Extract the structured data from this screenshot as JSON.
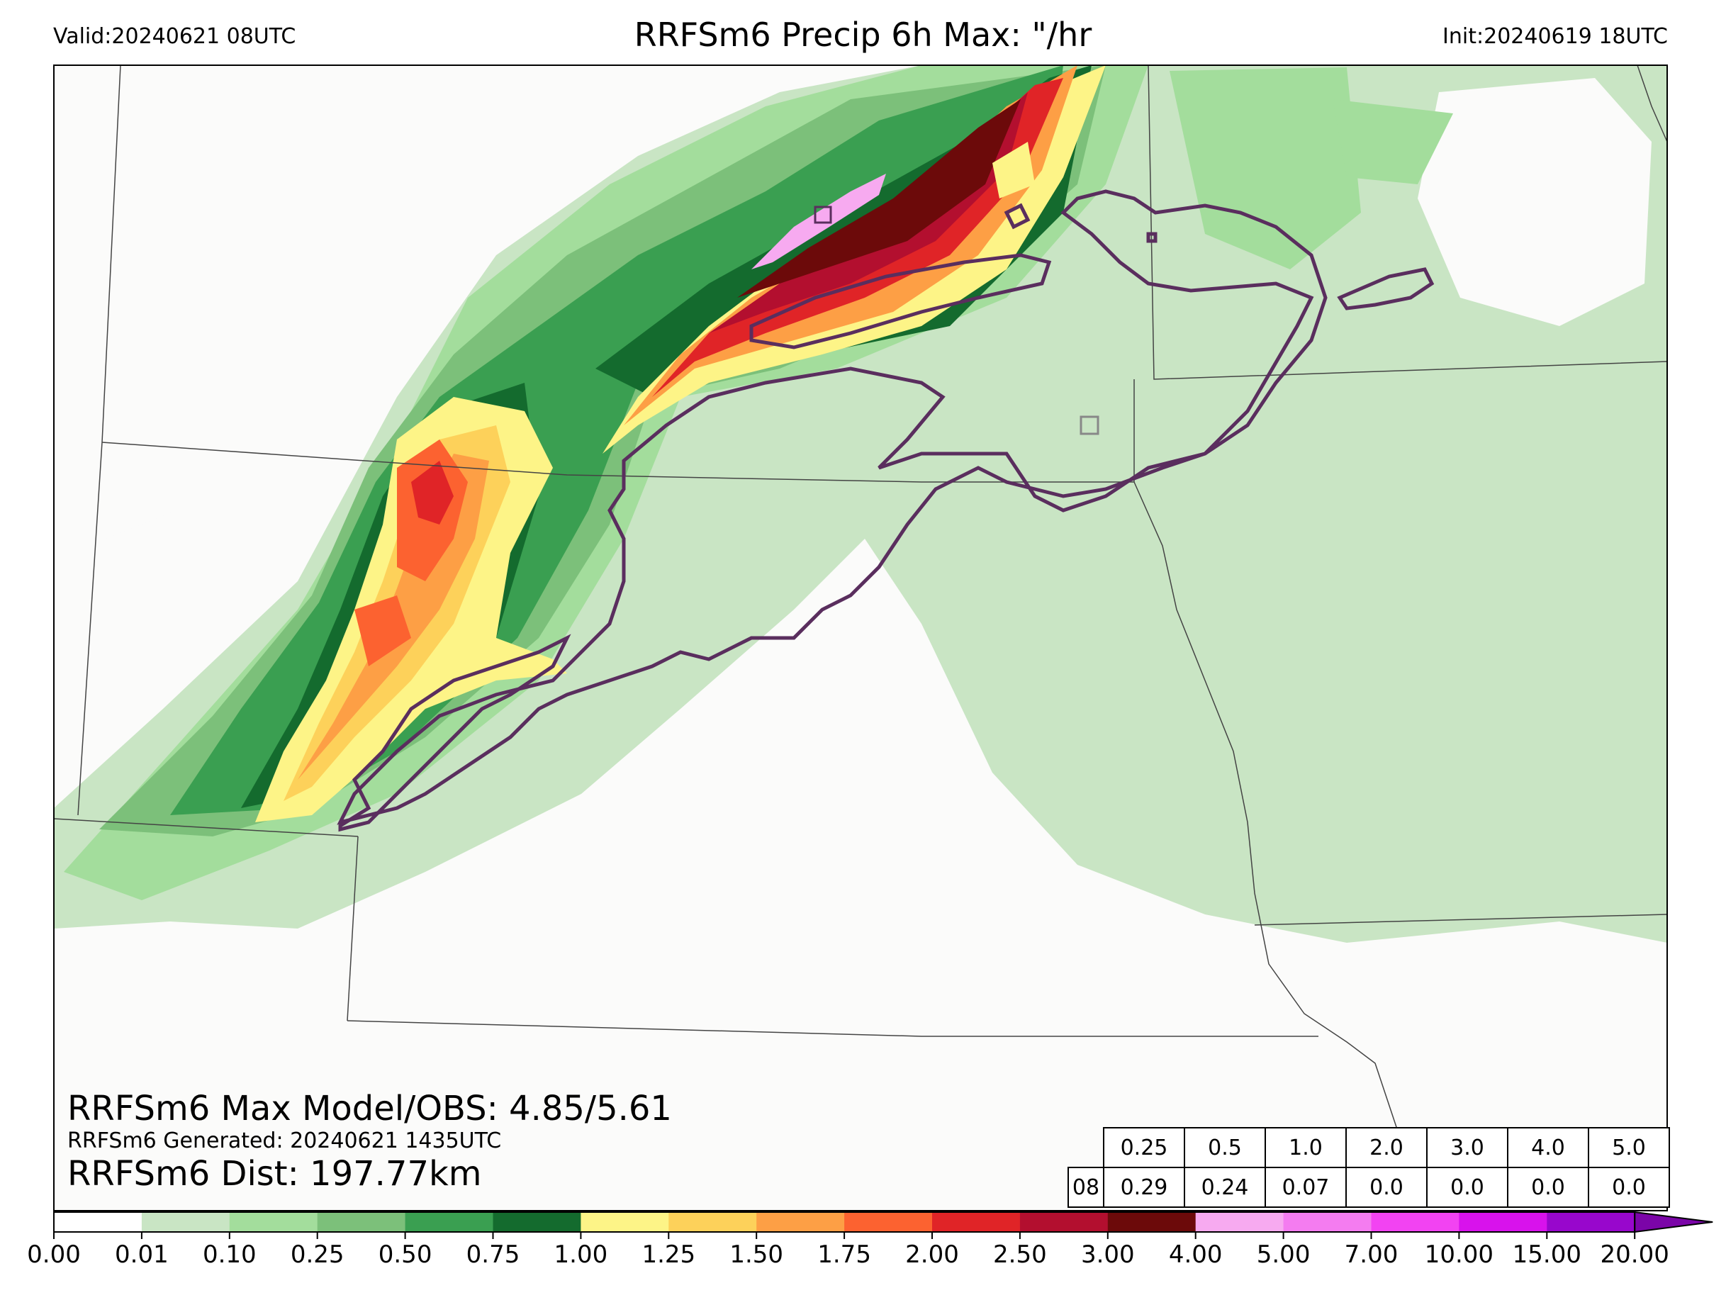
{
  "header": {
    "valid": "Valid:20240621 08UTC",
    "title": "RRFSm6 Precip 6h Max: \"/hr",
    "init": "Init:20240619 18UTC"
  },
  "annotations": {
    "max_line": "RRFSm6 Max Model/OBS: 4.85/5.61",
    "generated_line": "RRFSm6 Generated: 20240621 1435UTC",
    "dist_line": "RRFSm6 Dist: 197.77km"
  },
  "obs_table": {
    "hour_label": "08",
    "thresholds": [
      "0.25",
      "0.5",
      "1.0",
      "2.0",
      "3.0",
      "4.0",
      "5.0"
    ],
    "values": [
      "0.29",
      "0.24",
      "0.07",
      "0.0",
      "0.0",
      "0.0",
      "0.0"
    ]
  },
  "colorbar": {
    "ticks": [
      "0.00",
      "0.01",
      "0.10",
      "0.25",
      "0.50",
      "0.75",
      "1.00",
      "1.25",
      "1.50",
      "1.75",
      "2.00",
      "2.50",
      "3.00",
      "4.00",
      "5.00",
      "7.00",
      "10.00",
      "15.00",
      "20.00"
    ],
    "colors": [
      "#ffffff",
      "#c9e5c4",
      "#a3dd9c",
      "#7cc07a",
      "#3a9f51",
      "#146b2e",
      "#fdf487",
      "#fdd15a",
      "#fd9f45",
      "#fc6230",
      "#e02427",
      "#b30f2f",
      "#6c0a0a",
      "#f7aaf0",
      "#f47cf0",
      "#f243f2",
      "#d812ec",
      "#9807cc"
    ],
    "extend_color": "#7b05a8"
  },
  "map_colors": {
    "background": "#fbfbfa",
    "boundary": "#444444",
    "obs_contour": "#5a2e5e"
  }
}
